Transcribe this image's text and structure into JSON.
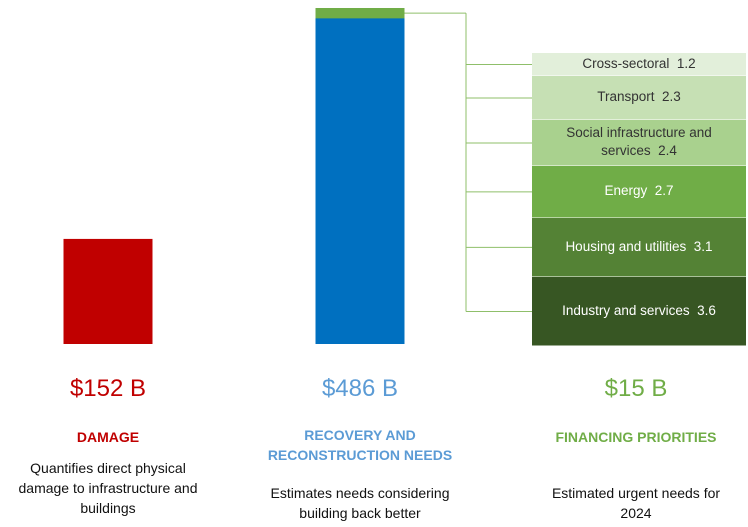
{
  "chart_data": {
    "type": "bar",
    "columns": [
      {
        "value": 152,
        "value_label": "$152 B",
        "title": "DAMAGE",
        "description": "Quantifies direct physical damage to infrastructure and buildings",
        "color": "#c00000",
        "label_color": "#c00000"
      },
      {
        "value": 486,
        "value_label": "$486 B",
        "title": "RECOVERY AND RECONSTRUCTION NEEDS",
        "description": "Estimates needs considering building back better",
        "color": "#0070c0",
        "label_color": "#5b9bd5"
      },
      {
        "value": 15,
        "value_label": "$15 B",
        "title": "FINANCING PRIORITIES",
        "description": "Estimated urgent needs for 2024",
        "color": "#70ad47",
        "label_color": "#70ad47"
      }
    ],
    "breakdown": {
      "categories": [
        "Cross-sectoral",
        "Transport",
        "Social infrastructure and services",
        "Energy",
        "Housing and utilities",
        "Industry and services"
      ],
      "values": [
        1.2,
        2.3,
        2.4,
        2.7,
        3.1,
        3.6
      ],
      "colors": [
        "#e2efda",
        "#c6e0b4",
        "#a9d18e",
        "#70ad47",
        "#548235",
        "#375623"
      ],
      "text_colors": [
        "#333333",
        "#333333",
        "#333333",
        "#ffffff",
        "#ffffff",
        "#ffffff"
      ]
    }
  }
}
